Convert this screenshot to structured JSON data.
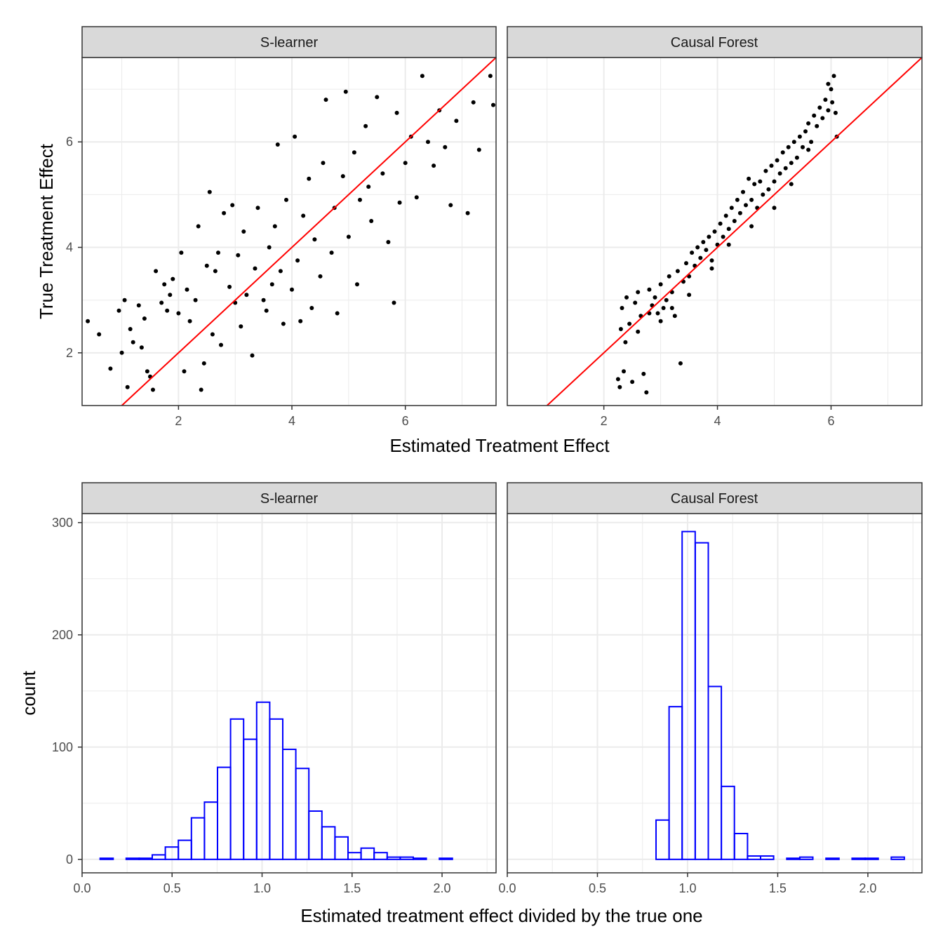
{
  "colors": {
    "points": "#000000",
    "identity_line": "#FF0000",
    "histogram_outline": "#0000FF",
    "strip_fill": "#D9D9D9",
    "grid": "#EBEBEB"
  },
  "scatter": {
    "xlabel": "Estimated Treatment Effect",
    "ylabel": "True Treatment Effect",
    "panels": [
      "S-learner",
      "Causal Forest"
    ],
    "xlim": [
      0.3,
      7.6
    ],
    "ylim": [
      1.0,
      7.6
    ],
    "x_ticks": [
      2,
      4,
      6
    ],
    "y_ticks": [
      2,
      4,
      6
    ],
    "reference_line": "y = x"
  },
  "histogram": {
    "xlabel": "Estimated treatment effect divided by the true one",
    "ylabel": "count",
    "panels": [
      "S-learner",
      "Causal Forest"
    ],
    "xlim": [
      0.0,
      2.3
    ],
    "ylim": [
      -12,
      308
    ],
    "x_ticks": [
      "0.0",
      "0.5",
      "1.0",
      "1.5",
      "2.0"
    ],
    "y_ticks": [
      "0",
      "100",
      "200",
      "300"
    ]
  },
  "chart_data": [
    {
      "type": "scatter",
      "title": "",
      "facet": "S-learner",
      "xlabel": "Estimated Treatment Effect",
      "ylabel": "True Treatment Effect",
      "xlim": [
        0.3,
        7.6
      ],
      "ylim": [
        1.0,
        7.6
      ],
      "reference_line": {
        "slope": 1,
        "intercept": 0
      },
      "n_points": 1000,
      "points": [
        [
          0.4,
          2.6
        ],
        [
          0.6,
          2.35
        ],
        [
          0.8,
          1.7
        ],
        [
          0.95,
          2.8
        ],
        [
          1.0,
          2.0
        ],
        [
          1.05,
          3.0
        ],
        [
          1.1,
          1.35
        ],
        [
          1.15,
          2.45
        ],
        [
          1.2,
          2.2
        ],
        [
          1.3,
          2.9
        ],
        [
          1.35,
          2.1
        ],
        [
          1.4,
          2.65
        ],
        [
          1.45,
          1.65
        ],
        [
          1.5,
          1.55
        ],
        [
          1.55,
          1.3
        ],
        [
          1.6,
          3.55
        ],
        [
          1.7,
          2.95
        ],
        [
          1.75,
          3.3
        ],
        [
          1.8,
          2.8
        ],
        [
          1.85,
          3.1
        ],
        [
          1.9,
          3.4
        ],
        [
          2.0,
          2.75
        ],
        [
          2.05,
          3.9
        ],
        [
          2.1,
          1.65
        ],
        [
          2.15,
          3.2
        ],
        [
          2.2,
          2.6
        ],
        [
          2.3,
          3.0
        ],
        [
          2.35,
          4.4
        ],
        [
          2.4,
          1.3
        ],
        [
          2.45,
          1.8
        ],
        [
          2.5,
          3.65
        ],
        [
          2.55,
          5.05
        ],
        [
          2.6,
          2.35
        ],
        [
          2.65,
          3.55
        ],
        [
          2.7,
          3.9
        ],
        [
          2.75,
          2.15
        ],
        [
          2.8,
          4.65
        ],
        [
          2.9,
          3.25
        ],
        [
          2.95,
          4.8
        ],
        [
          3.0,
          2.95
        ],
        [
          3.05,
          3.85
        ],
        [
          3.1,
          2.5
        ],
        [
          3.15,
          4.3
        ],
        [
          3.2,
          3.1
        ],
        [
          3.3,
          1.95
        ],
        [
          3.35,
          3.6
        ],
        [
          3.4,
          4.75
        ],
        [
          3.5,
          3.0
        ],
        [
          3.55,
          2.8
        ],
        [
          3.6,
          4.0
        ],
        [
          3.65,
          3.3
        ],
        [
          3.7,
          4.4
        ],
        [
          3.75,
          5.95
        ],
        [
          3.8,
          3.55
        ],
        [
          3.85,
          2.55
        ],
        [
          3.9,
          4.9
        ],
        [
          4.0,
          3.2
        ],
        [
          4.05,
          6.1
        ],
        [
          4.1,
          3.75
        ],
        [
          4.15,
          2.6
        ],
        [
          4.2,
          4.6
        ],
        [
          4.3,
          5.3
        ],
        [
          4.35,
          2.85
        ],
        [
          4.4,
          4.15
        ],
        [
          4.5,
          3.45
        ],
        [
          4.55,
          5.6
        ],
        [
          4.6,
          6.8
        ],
        [
          4.7,
          3.9
        ],
        [
          4.75,
          4.75
        ],
        [
          4.8,
          2.75
        ],
        [
          4.9,
          5.35
        ],
        [
          4.95,
          6.95
        ],
        [
          5.0,
          4.2
        ],
        [
          5.1,
          5.8
        ],
        [
          5.15,
          3.3
        ],
        [
          5.2,
          4.9
        ],
        [
          5.3,
          6.3
        ],
        [
          5.35,
          5.15
        ],
        [
          5.4,
          4.5
        ],
        [
          5.5,
          6.85
        ],
        [
          5.6,
          5.4
        ],
        [
          5.7,
          4.1
        ],
        [
          5.8,
          2.95
        ],
        [
          5.85,
          6.55
        ],
        [
          5.9,
          4.85
        ],
        [
          6.0,
          5.6
        ],
        [
          6.1,
          6.1
        ],
        [
          6.2,
          4.95
        ],
        [
          6.3,
          7.25
        ],
        [
          6.4,
          6.0
        ],
        [
          6.5,
          5.55
        ],
        [
          6.6,
          6.6
        ],
        [
          6.7,
          5.9
        ],
        [
          6.8,
          4.8
        ],
        [
          6.9,
          6.4
        ],
        [
          7.1,
          4.65
        ],
        [
          7.2,
          6.75
        ],
        [
          7.3,
          5.85
        ],
        [
          7.5,
          7.25
        ],
        [
          7.55,
          6.7
        ]
      ]
    },
    {
      "type": "scatter",
      "title": "",
      "facet": "Causal Forest",
      "xlabel": "Estimated Treatment Effect",
      "ylabel": "True Treatment Effect",
      "xlim": [
        0.3,
        7.6
      ],
      "ylim": [
        1.0,
        7.6
      ],
      "reference_line": {
        "slope": 1,
        "intercept": 0
      },
      "n_points": 1000,
      "points": [
        [
          2.25,
          1.5
        ],
        [
          2.28,
          1.35
        ],
        [
          2.3,
          2.45
        ],
        [
          2.32,
          2.85
        ],
        [
          2.35,
          1.65
        ],
        [
          2.38,
          2.2
        ],
        [
          2.4,
          3.05
        ],
        [
          2.45,
          2.55
        ],
        [
          2.5,
          1.45
        ],
        [
          2.55,
          2.95
        ],
        [
          2.6,
          3.15
        ],
        [
          2.65,
          2.7
        ],
        [
          2.7,
          1.6
        ],
        [
          2.75,
          1.25
        ],
        [
          2.8,
          3.2
        ],
        [
          2.85,
          2.9
        ],
        [
          2.9,
          3.05
        ],
        [
          2.95,
          2.75
        ],
        [
          3.0,
          3.3
        ],
        [
          3.05,
          2.85
        ],
        [
          3.1,
          3.0
        ],
        [
          3.15,
          3.45
        ],
        [
          3.2,
          3.15
        ],
        [
          3.25,
          2.7
        ],
        [
          3.3,
          3.55
        ],
        [
          3.35,
          1.8
        ],
        [
          3.4,
          3.35
        ],
        [
          3.45,
          3.7
        ],
        [
          3.5,
          3.45
        ],
        [
          3.55,
          3.9
        ],
        [
          3.6,
          3.65
        ],
        [
          3.65,
          4.0
        ],
        [
          3.7,
          3.8
        ],
        [
          3.75,
          4.1
        ],
        [
          3.8,
          3.95
        ],
        [
          3.85,
          4.2
        ],
        [
          3.9,
          3.75
        ],
        [
          3.95,
          4.3
        ],
        [
          4.0,
          4.05
        ],
        [
          4.05,
          4.45
        ],
        [
          4.1,
          4.2
        ],
        [
          4.15,
          4.6
        ],
        [
          4.2,
          4.35
        ],
        [
          4.25,
          4.75
        ],
        [
          4.3,
          4.5
        ],
        [
          4.35,
          4.9
        ],
        [
          4.4,
          4.65
        ],
        [
          4.45,
          5.05
        ],
        [
          4.5,
          4.8
        ],
        [
          4.55,
          5.3
        ],
        [
          4.6,
          4.9
        ],
        [
          4.65,
          5.2
        ],
        [
          4.7,
          4.75
        ],
        [
          4.75,
          5.25
        ],
        [
          4.8,
          5.0
        ],
        [
          4.85,
          5.45
        ],
        [
          4.9,
          5.1
        ],
        [
          4.95,
          5.55
        ],
        [
          5.0,
          5.25
        ],
        [
          5.05,
          5.65
        ],
        [
          5.1,
          5.4
        ],
        [
          5.15,
          5.8
        ],
        [
          5.2,
          5.5
        ],
        [
          5.25,
          5.9
        ],
        [
          5.3,
          5.6
        ],
        [
          5.35,
          6.0
        ],
        [
          5.4,
          5.7
        ],
        [
          5.45,
          6.1
        ],
        [
          5.5,
          5.9
        ],
        [
          5.55,
          6.2
        ],
        [
          5.6,
          6.35
        ],
        [
          5.65,
          6.0
        ],
        [
          5.7,
          6.5
        ],
        [
          5.75,
          6.3
        ],
        [
          5.8,
          6.65
        ],
        [
          5.85,
          6.45
        ],
        [
          5.9,
          6.8
        ],
        [
          5.95,
          6.6
        ],
        [
          6.0,
          7.0
        ],
        [
          6.02,
          6.75
        ],
        [
          6.05,
          7.25
        ],
        [
          6.08,
          6.55
        ],
        [
          6.1,
          6.1
        ],
        [
          5.95,
          7.1
        ],
        [
          5.6,
          5.85
        ],
        [
          5.3,
          5.2
        ],
        [
          5.0,
          4.75
        ],
        [
          4.6,
          4.4
        ],
        [
          4.2,
          4.05
        ],
        [
          3.9,
          3.6
        ],
        [
          3.5,
          3.1
        ],
        [
          3.2,
          2.85
        ],
        [
          3.0,
          2.6
        ],
        [
          2.8,
          2.75
        ],
        [
          2.6,
          2.4
        ]
      ]
    },
    {
      "type": "bar",
      "title": "",
      "facet": "S-learner",
      "histogram": true,
      "xlabel": "Estimated treatment effect divided by the true one",
      "ylabel": "count",
      "xlim": [
        0.0,
        2.3
      ],
      "ylim": [
        -12,
        308
      ],
      "bin_width": 0.0725,
      "bins_start": 0.1,
      "values": [
        1,
        0,
        1,
        1,
        4,
        11,
        17,
        37,
        51,
        82,
        125,
        107,
        140,
        125,
        98,
        81,
        43,
        29,
        20,
        6,
        10,
        6,
        2,
        2,
        1,
        0,
        1,
        0,
        0
      ]
    },
    {
      "type": "bar",
      "title": "",
      "facet": "Causal Forest",
      "histogram": true,
      "xlabel": "Estimated treatment effect divided by the true one",
      "ylabel": "count",
      "xlim": [
        0.0,
        2.3
      ],
      "ylim": [
        -12,
        308
      ],
      "bin_width": 0.0725,
      "bins_start": 0.1,
      "values": [
        0,
        0,
        0,
        0,
        0,
        0,
        0,
        0,
        0,
        0,
        35,
        136,
        292,
        282,
        154,
        65,
        23,
        3,
        3,
        0,
        1,
        2,
        0,
        1,
        0,
        1,
        1,
        0,
        2
      ]
    }
  ]
}
